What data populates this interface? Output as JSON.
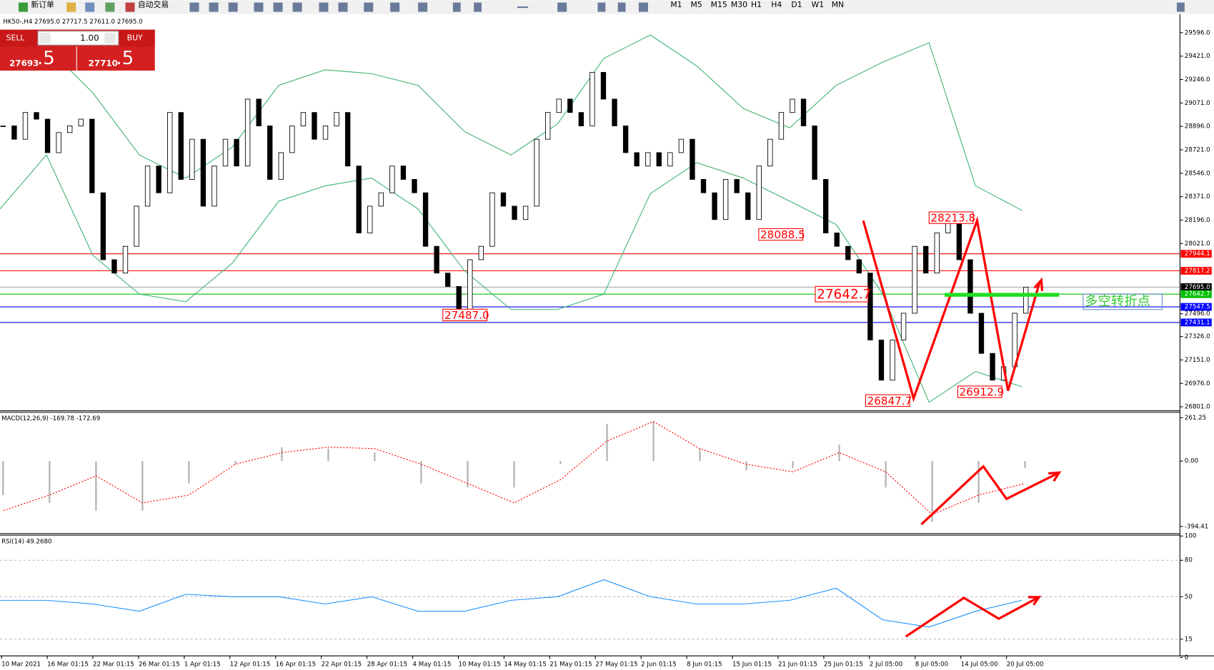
{
  "toolbar": {
    "new_order": "新订单",
    "auto_trading": "自动交易",
    "timeframes": [
      "M1",
      "M5",
      "M15",
      "M30",
      "H1",
      "H4",
      "D1",
      "W1",
      "MN"
    ]
  },
  "order_panel": {
    "sell": "SELL",
    "lots": "1.00",
    "buy": "BUY",
    "bid": "27693",
    "bid_pip": ".5",
    "ask": "27710",
    "ask_pip": ".5"
  },
  "chart_data": [
    {
      "type": "candlestick",
      "title": "HK50-,H4  27695.0 27717.5 27611.0 27695.0",
      "closes": [
        28900,
        28800,
        29000,
        28950,
        28700,
        28850,
        28900,
        28950,
        28400,
        27900,
        27800,
        28000,
        28300,
        28600,
        28400,
        29000,
        28500,
        28800,
        28300,
        28600,
        28800,
        28600,
        29100,
        28900,
        28500,
        28700,
        28900,
        29000,
        28800,
        28900,
        29000,
        28600,
        28100,
        28300,
        28400,
        28600,
        28500,
        28400,
        28000,
        27800,
        27700,
        27500,
        27900,
        28000,
        28400,
        28300,
        28200,
        28300,
        28800,
        29000,
        29100,
        29000,
        28900,
        29300,
        29100,
        28900,
        28700,
        28600,
        28700,
        28600,
        28700,
        28800,
        28500,
        28400,
        28200,
        28500,
        28400,
        28200,
        28600,
        28800,
        29000,
        29100,
        28900,
        28500,
        28100,
        28000,
        27900,
        27800,
        27300,
        27000,
        27300,
        27500,
        28000,
        27800,
        28100,
        28200,
        27900,
        27500,
        27200,
        27000,
        27100,
        27500,
        27695
      ],
      "upper_band": [
        29608,
        29492,
        29146,
        28683,
        28510,
        28741,
        29203,
        29319,
        29290,
        29203,
        28857,
        28683,
        28914,
        29405,
        29579,
        29348,
        29030,
        28885,
        29203,
        29376,
        29521,
        28452,
        28268
      ],
      "lower_band": [
        28279,
        28683,
        27932,
        27643,
        27586,
        27874,
        28337,
        28452,
        28510,
        28279,
        27817,
        27528,
        27528,
        27643,
        28394,
        28625,
        28510,
        28337,
        28163,
        27643,
        26835,
        27065,
        26950
      ],
      "band_color": "#3cb371",
      "ylim": [
        26777,
        29677
      ],
      "yticks": [
        {
          "value": 29596,
          "label": "29596.0"
        },
        {
          "value": 29421,
          "label": "29421.0"
        },
        {
          "value": 29246,
          "label": "29246.0"
        },
        {
          "value": 29071,
          "label": "29071.0"
        },
        {
          "value": 28896,
          "label": "28896.0"
        },
        {
          "value": 28721,
          "label": "28721.0"
        },
        {
          "value": 28546,
          "label": "28546.0"
        },
        {
          "value": 28371,
          "label": "28371.0"
        },
        {
          "value": 28196,
          "label": "28196.0"
        },
        {
          "value": 28021,
          "label": "28021.0"
        },
        {
          "value": 27496,
          "label": "27496.0"
        },
        {
          "value": 27326,
          "label": "27326.0"
        },
        {
          "value": 27151,
          "label": "27151.0"
        },
        {
          "value": 26976,
          "label": "26976.0"
        },
        {
          "value": 26801,
          "label": "26801.0"
        }
      ],
      "levels": [
        {
          "value": 27944.1,
          "label": "27944.1",
          "color": "#ff0000"
        },
        {
          "value": 27817.2,
          "label": "27817.2",
          "color": "#ff0000"
        },
        {
          "value": 27695,
          "label": "27695.0",
          "color": "#000000"
        },
        {
          "value": 27642.7,
          "label": "27642.7",
          "color": "#00c000"
        },
        {
          "value": 27547.5,
          "label": "27547.5",
          "color": "#0000ff"
        },
        {
          "value": 27431.1,
          "label": "27431.1",
          "color": "#0000ff"
        }
      ],
      "price_labels": [
        {
          "value": 28088.5,
          "label": "28088.5"
        },
        {
          "value": 28213.8,
          "label": "28213.8"
        },
        {
          "value": 27642.7,
          "label": "27642.7"
        },
        {
          "value": 27487,
          "label": "27487.0"
        },
        {
          "value": 26847.7,
          "label": "26847.7"
        },
        {
          "value": 26912.9,
          "label": "26912.9"
        }
      ],
      "pivot_label": "多空转折点",
      "x_labels": [
        "10 Mar 2021",
        "16 Mar 01:15",
        "22 Mar 01:15",
        "26 Mar 01:15",
        "1 Apr 01:15",
        "12 Apr 01:15",
        "16 Apr 01:15",
        "22 Apr 01:15",
        "28 Apr 01:15",
        "4 May 01:15",
        "10 May 01:15",
        "14 May 01:15",
        "21 May 01:15",
        "27 May 01:15",
        "2 Jun 01:15",
        "8 Jun 01:15",
        "15 Jun 01:15",
        "21 Jun 01:15",
        "25 Jun 01:15",
        "2 Jul 05:00",
        "8 Jul 05:00",
        "14 Jul 05:00",
        "20 Jul 05:00"
      ]
    },
    {
      "type": "macd",
      "title": "MACD(12,26,9) -169.78 -172.69",
      "histogram": [
        -205,
        -252,
        -299,
        -299,
        -135,
        -19,
        84,
        75,
        51,
        -135,
        -159,
        -159,
        -19,
        224,
        238,
        75,
        -56,
        -42,
        98,
        -159,
        -368,
        -252,
        -42
      ],
      "signal": [
        -299,
        -205,
        -89,
        -252,
        -205,
        -19,
        51,
        84,
        75,
        -19,
        -135,
        -252,
        -112,
        121,
        238,
        75,
        -19,
        -65,
        51,
        -65,
        -322,
        -205,
        -135
      ],
      "ylim": [
        -438,
        294
      ],
      "yticks": [
        261.25,
        {
          "value": 0,
          "label": "0.00"
        },
        -394.41
      ]
    },
    {
      "type": "line",
      "title": "RSI(14) 49.2680",
      "values": [
        47,
        47,
        44,
        38,
        52,
        50,
        50,
        44,
        50,
        38,
        38,
        47,
        50,
        64,
        50,
        44,
        44,
        47,
        57,
        31,
        25,
        38,
        47
      ],
      "color": "#1e90ff",
      "ylim": [
        0,
        100
      ],
      "yticks": [
        100,
        80,
        50,
        15,
        0
      ]
    }
  ]
}
